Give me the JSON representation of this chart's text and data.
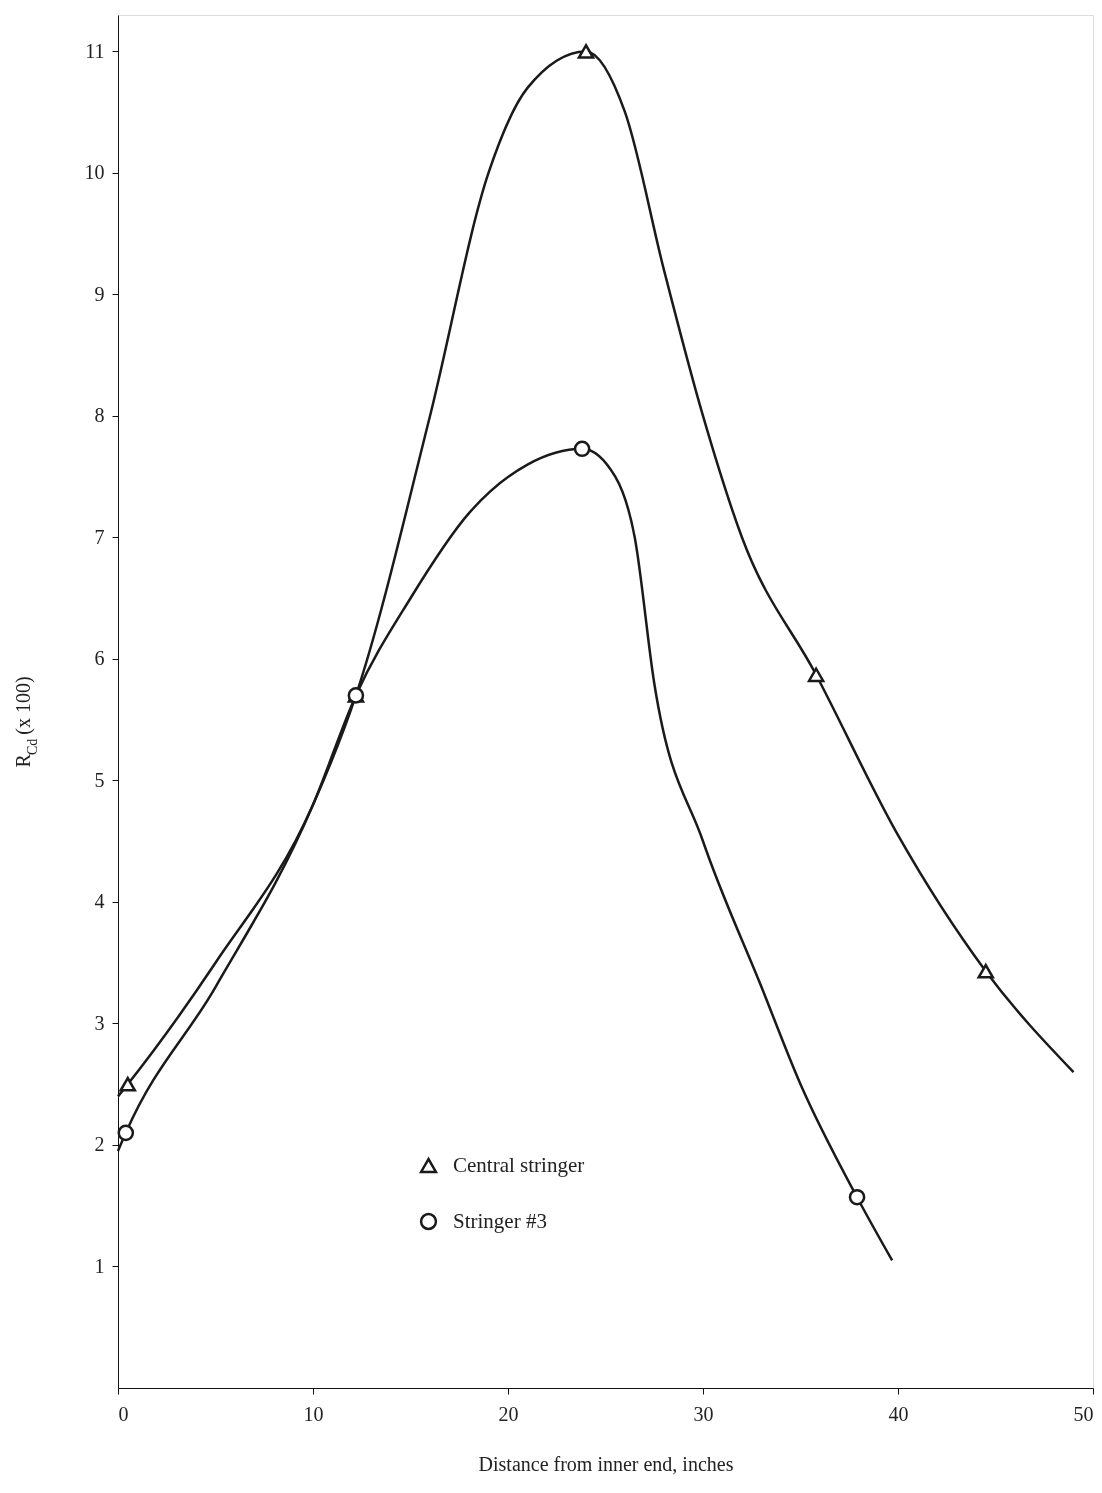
{
  "chart_data": {
    "type": "line",
    "xlabel": "Distance from inner end,  inches",
    "ylabel": "R$_{Cd}$ (x 100)",
    "xlim": [
      0,
      50
    ],
    "ylim": [
      0,
      11.3
    ],
    "xticks": [
      0,
      10,
      20,
      30,
      40,
      50
    ],
    "yticks": [
      1,
      2,
      3,
      4,
      5,
      6,
      7,
      8,
      9,
      10,
      11
    ],
    "grid": false,
    "legend": "bottom",
    "series": [
      {
        "type": "line",
        "marker": "none",
        "line_style": "solid",
        "color": "#1a1a1a",
        "x": [
          0,
          0.5,
          5,
          10,
          12.2,
          16,
          19,
          21,
          24,
          26,
          28,
          30,
          32,
          35.8,
          40,
          44.5,
          49
        ],
        "values": [
          2.4,
          2.5,
          3.5,
          4.8,
          5.7,
          8.0,
          10.0,
          10.7,
          11.0,
          10.5,
          9.2,
          8.0,
          7.0,
          5.87,
          4.55,
          3.43,
          2.6
        ]
      },
      {
        "type": "line",
        "marker": "none",
        "line_style": "solid",
        "color": "#1a1a1a",
        "x": [
          0,
          0.4,
          5,
          10,
          12.2,
          15,
          18,
          21,
          23.8,
          25.5,
          26.5,
          27.5,
          30,
          33,
          35,
          37.9,
          39.7
        ],
        "values": [
          1.95,
          2.1,
          3.3,
          4.8,
          5.7,
          6.5,
          7.2,
          7.6,
          7.73,
          7.5,
          7.0,
          5.8,
          4.5,
          3.3,
          2.5,
          1.57,
          1.05
        ]
      },
      {
        "type": "scatter",
        "name": "Central stringer",
        "marker": "triangle",
        "color": "#1a1a1a",
        "x": [
          0.5,
          12.2,
          24,
          35.8,
          44.5
        ],
        "values": [
          2.5,
          5.7,
          11.0,
          5.87,
          3.43
        ]
      },
      {
        "type": "scatter",
        "name": "Stringer #3",
        "marker": "circle",
        "color": "#1a1a1a",
        "x": [
          0.4,
          12.2,
          23.8,
          37.9
        ],
        "values": [
          2.1,
          5.7,
          7.73,
          1.57
        ]
      }
    ]
  }
}
